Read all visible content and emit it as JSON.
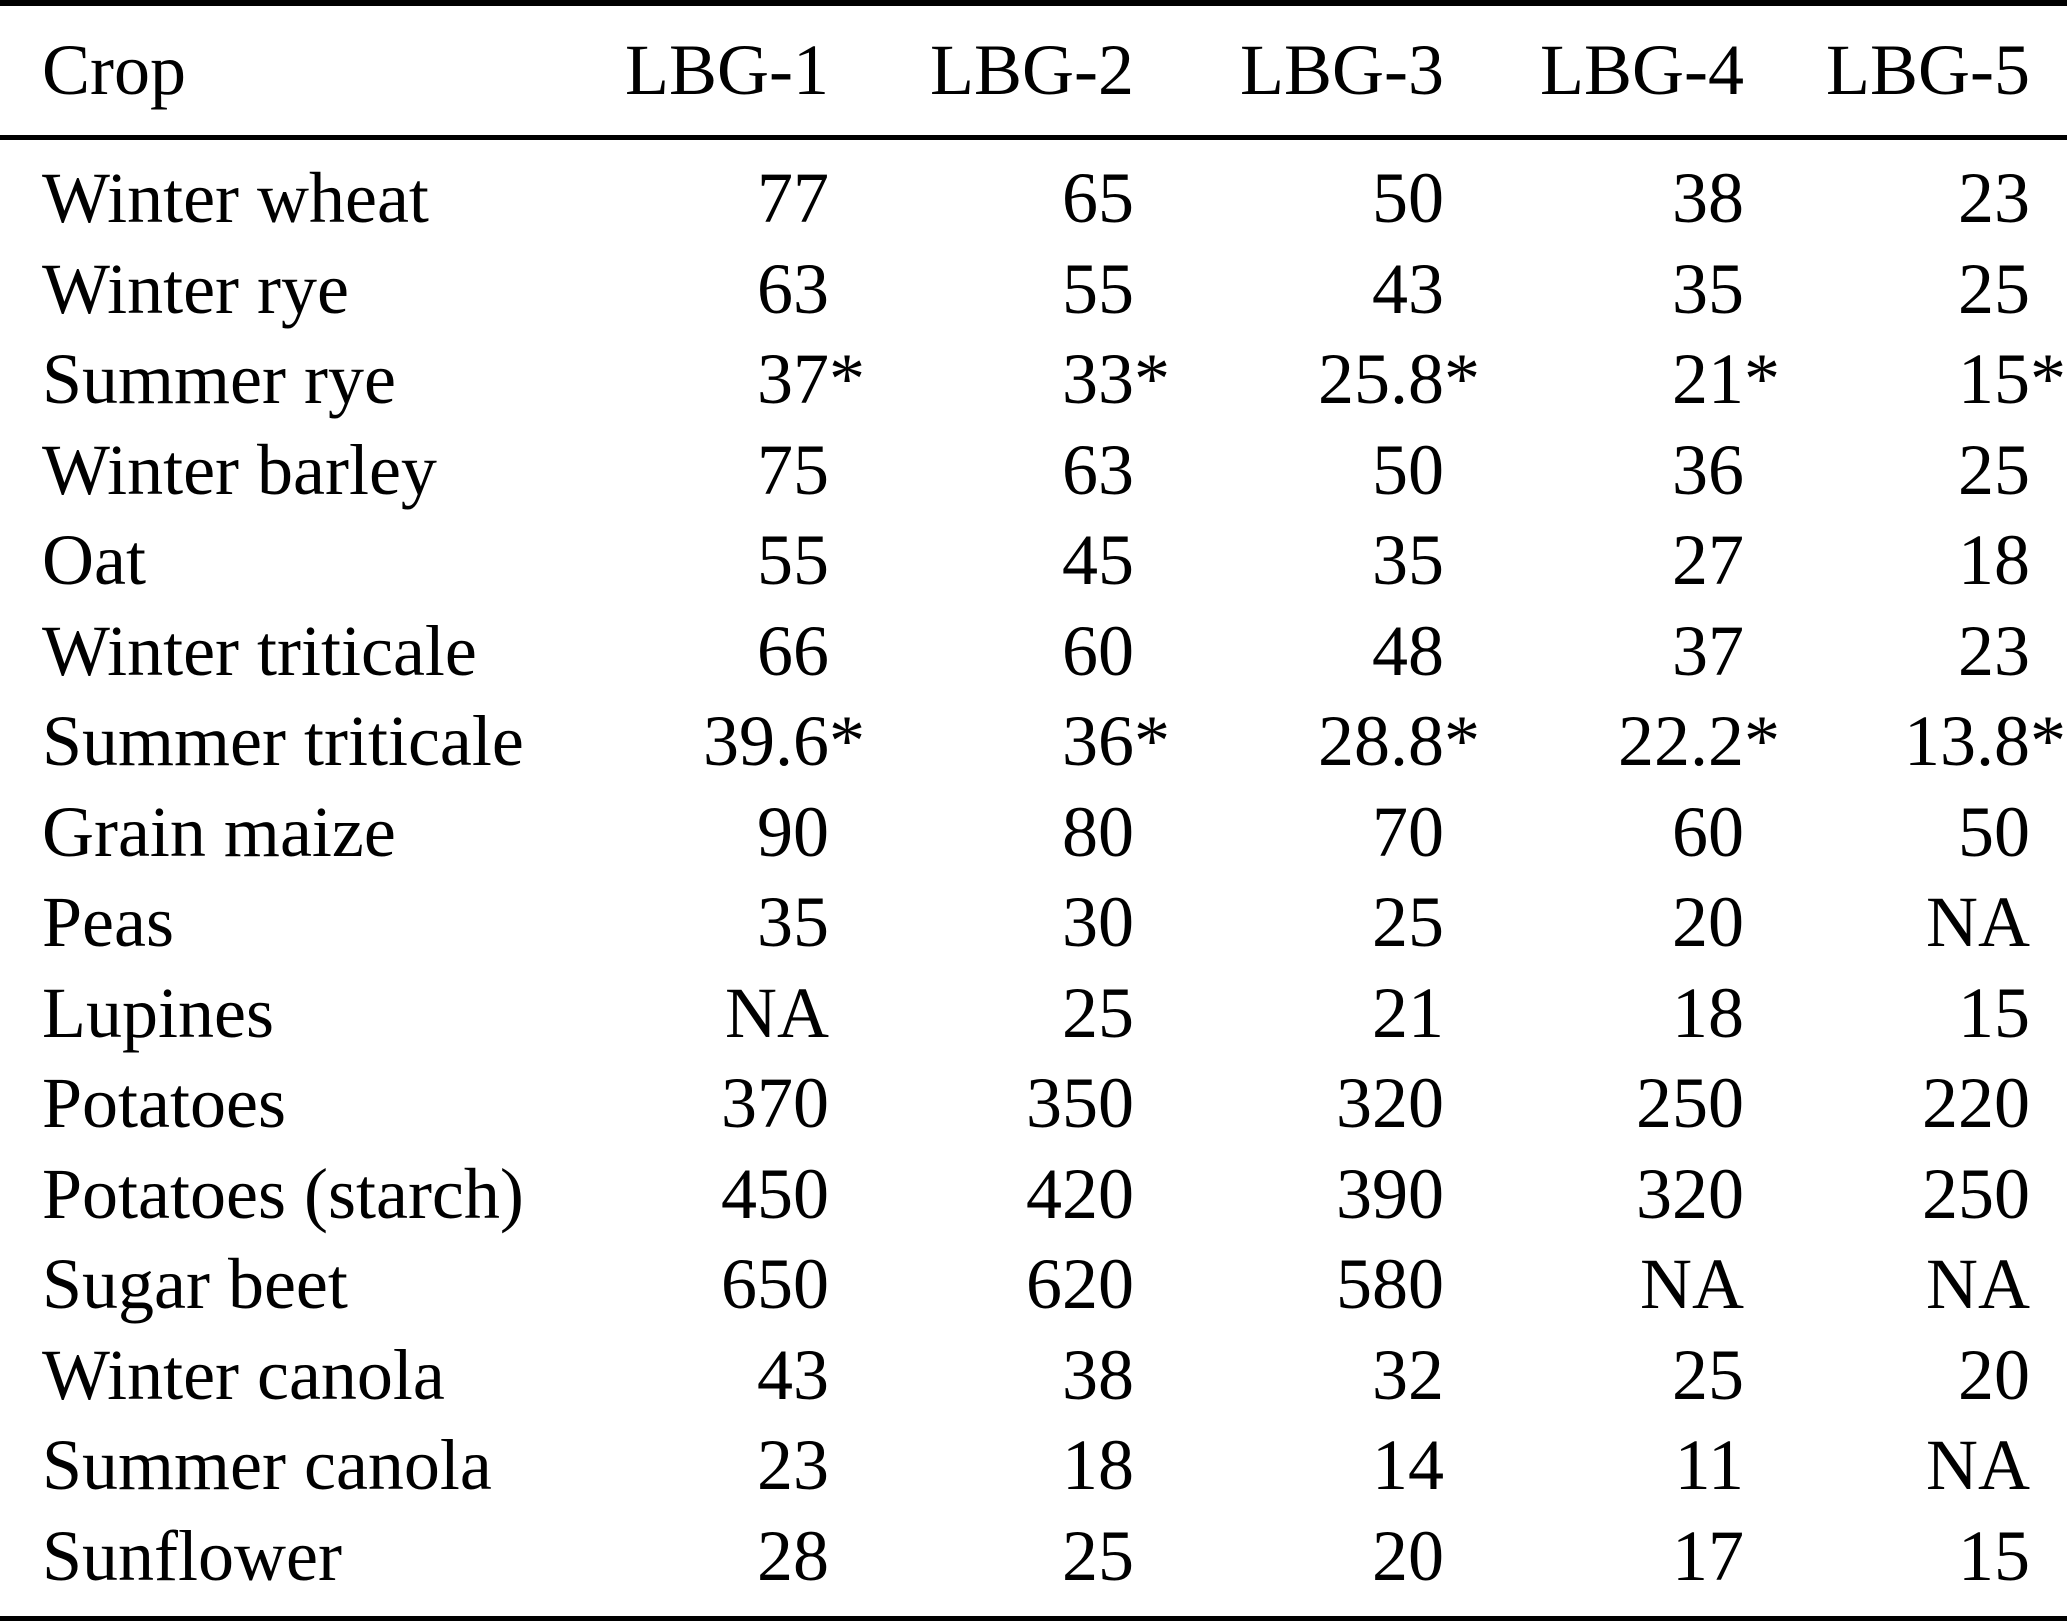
{
  "table": {
    "columns": [
      "Crop",
      "LBG-1",
      "LBG-2",
      "LBG-3",
      "LBG-4",
      "LBG-5"
    ],
    "rows": [
      {
        "crop": "Winter wheat",
        "values": [
          "77",
          "65",
          "50",
          "38",
          "23"
        ]
      },
      {
        "crop": "Winter rye",
        "values": [
          "63",
          "55",
          "43",
          "35",
          "25"
        ]
      },
      {
        "crop": "Summer rye",
        "values": [
          "37*",
          "33*",
          "25.8*",
          "21*",
          "15*"
        ]
      },
      {
        "crop": "Winter barley",
        "values": [
          "75",
          "63",
          "50",
          "36",
          "25"
        ]
      },
      {
        "crop": "Oat",
        "values": [
          "55",
          "45",
          "35",
          "27",
          "18"
        ]
      },
      {
        "crop": "Winter triticale",
        "values": [
          "66",
          "60",
          "48",
          "37",
          "23"
        ]
      },
      {
        "crop": "Summer triticale",
        "values": [
          "39.6*",
          "36*",
          "28.8*",
          "22.2*",
          "13.8*"
        ]
      },
      {
        "crop": "Grain maize",
        "values": [
          "90",
          "80",
          "70",
          "60",
          "50"
        ]
      },
      {
        "crop": "Peas",
        "values": [
          "35",
          "30",
          "25",
          "20",
          "NA"
        ]
      },
      {
        "crop": "Lupines",
        "values": [
          "NA",
          "25",
          "21",
          "18",
          "15"
        ]
      },
      {
        "crop": "Potatoes",
        "values": [
          "370",
          "350",
          "320",
          "250",
          "220"
        ]
      },
      {
        "crop": "Potatoes (starch)",
        "values": [
          "450",
          "420",
          "390",
          "320",
          "250"
        ]
      },
      {
        "crop": "Sugar beet",
        "values": [
          "650",
          "620",
          "580",
          "NA",
          "NA"
        ]
      },
      {
        "crop": "Winter canola",
        "values": [
          "43",
          "38",
          "32",
          "25",
          "20"
        ]
      },
      {
        "crop": "Summer canola",
        "values": [
          "23",
          "18",
          "14",
          "11",
          "NA"
        ]
      },
      {
        "crop": "Sunflower",
        "values": [
          "28",
          "25",
          "20",
          "17",
          "15"
        ]
      }
    ],
    "footnote_marker": "*",
    "missing_value_label": "NA",
    "text_color": "#000000",
    "rule_color": "#000000",
    "background_color": "#ffffff"
  }
}
